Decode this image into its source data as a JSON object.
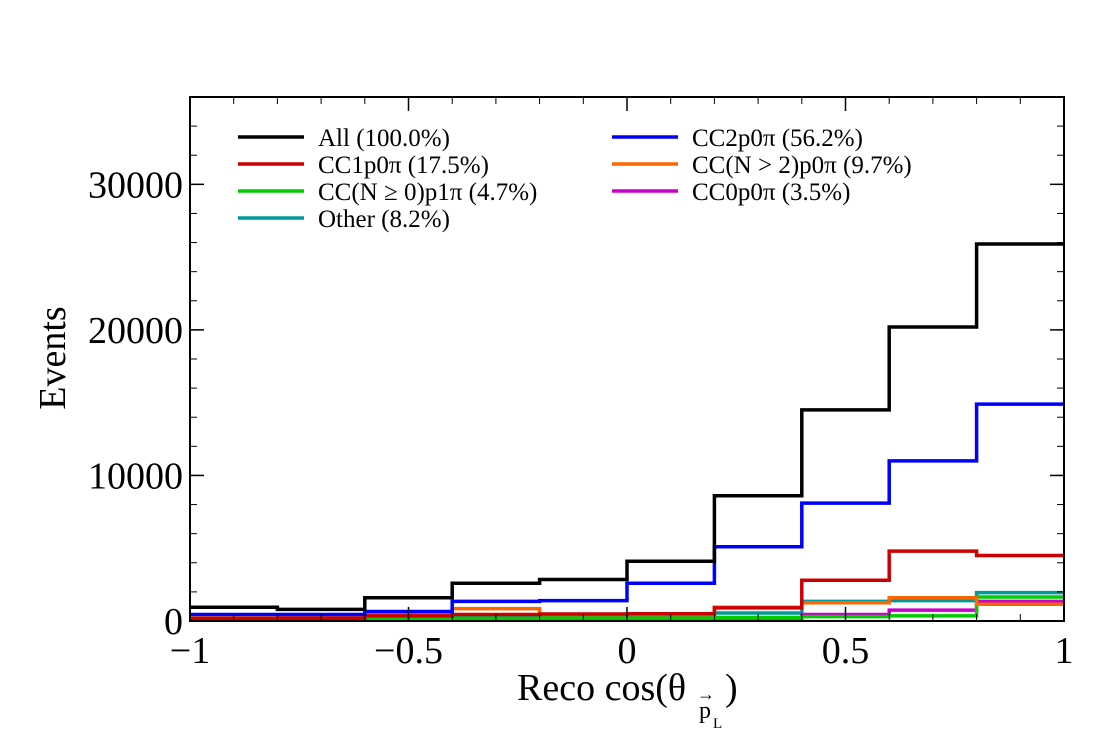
{
  "chart_data": {
    "type": "line",
    "step": true,
    "xlabel_main": "Reco cos(θ",
    "xlabel_sub": "p",
    "xlabel_sub2": "L",
    "xlabel_close": ")",
    "ylabel": "Events",
    "xlim": [
      -1,
      1
    ],
    "ylim": [
      0,
      36000
    ],
    "grid": false,
    "legend_position": "top",
    "x_ticks": [
      {
        "value": -1,
        "label": "−1"
      },
      {
        "value": -0.5,
        "label": "−0.5"
      },
      {
        "value": 0,
        "label": "0"
      },
      {
        "value": 0.5,
        "label": "0.5"
      },
      {
        "value": 1,
        "label": "1"
      }
    ],
    "y_ticks": [
      {
        "value": 0,
        "label": "0"
      },
      {
        "value": 10000,
        "label": "10000"
      },
      {
        "value": 20000,
        "label": "20000"
      },
      {
        "value": 30000,
        "label": "30000"
      }
    ],
    "bin_edges": [
      -1.0,
      -0.8,
      -0.6,
      -0.4,
      -0.2,
      0.0,
      0.2,
      0.4,
      0.6,
      0.8,
      1.0
    ],
    "series": [
      {
        "name": "All (100.0%)",
        "color": "#000000",
        "values": [
          950,
          800,
          1600,
          2600,
          2850,
          4100,
          8600,
          14500,
          20200,
          25900
        ]
      },
      {
        "name": "CC2p0π (56.2%)",
        "color": "#0000ff",
        "values": [
          450,
          450,
          650,
          1350,
          1400,
          2600,
          5100,
          8100,
          11000,
          14900
        ]
      },
      {
        "name": "CC1p0π (17.5%)",
        "color": "#cc0000",
        "values": [
          150,
          180,
          350,
          450,
          480,
          500,
          900,
          2800,
          4800,
          4500
        ]
      },
      {
        "name": "CC(N > 2)p0π (9.7%)",
        "color": "#ff6600",
        "values": [
          300,
          250,
          450,
          850,
          450,
          450,
          950,
          1250,
          1600,
          1150
        ]
      },
      {
        "name": "CC(N ≥ 0)p1π (4.7%)",
        "color": "#00cc00",
        "values": [
          80,
          80,
          120,
          180,
          200,
          200,
          250,
          300,
          350,
          1650
        ]
      },
      {
        "name": "CC0p0π (3.5%)",
        "color": "#cc00cc",
        "values": [
          100,
          100,
          120,
          150,
          150,
          150,
          200,
          450,
          750,
          1350
        ]
      },
      {
        "name": "Other (8.2%)",
        "color": "#009999",
        "values": [
          150,
          150,
          200,
          300,
          300,
          300,
          550,
          1350,
          1400,
          1950
        ]
      }
    ]
  }
}
